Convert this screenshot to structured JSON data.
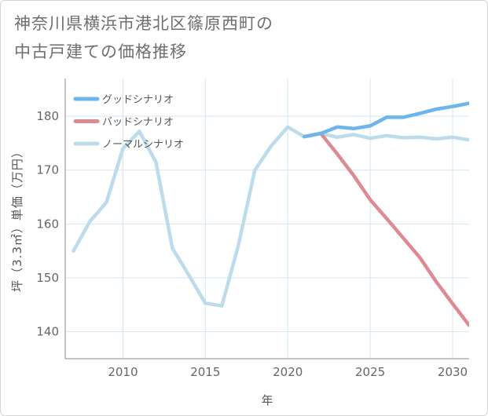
{
  "title": "神奈川県横浜市港北区篠原西町の\n中古戸建ての価格推移",
  "chart_data": {
    "type": "line",
    "title": "神奈川県横浜市港北区篠原西町の中古戸建ての価格推移",
    "xlabel": "年",
    "ylabel": "坪（3.3㎡）単価（万円）",
    "xlim": [
      2006.5,
      2031
    ],
    "ylim": [
      135,
      187
    ],
    "xticks": [
      2010,
      2015,
      2020,
      2025,
      2030
    ],
    "yticks": [
      140,
      150,
      160,
      170,
      180
    ],
    "grid": true,
    "legend_position": "top-left",
    "series": [
      {
        "name": "グッドシナリオ",
        "color": "#6db6ec",
        "x": [
          2021,
          2022,
          2023,
          2024,
          2025,
          2026,
          2027,
          2028,
          2029,
          2030,
          2031
        ],
        "y": [
          176.2,
          176.8,
          178.0,
          177.7,
          178.2,
          179.8,
          179.8,
          180.5,
          181.3,
          181.8,
          182.4
        ]
      },
      {
        "name": "バッドシナリオ",
        "color": "#de8a92",
        "x": [
          2021,
          2022,
          2023,
          2024,
          2025,
          2026,
          2027,
          2028,
          2029,
          2030,
          2031
        ],
        "y": [
          176.2,
          176.8,
          173.0,
          169.0,
          164.5,
          161.0,
          157.4,
          153.8,
          149.3,
          145.2,
          141.2
        ]
      },
      {
        "name": "ノーマルシナリオ",
        "color": "#bcdcec",
        "x": [
          2007,
          2008,
          2009,
          2010,
          2011,
          2012,
          2013,
          2014,
          2015,
          2016,
          2017,
          2018,
          2019,
          2020,
          2021,
          2022,
          2023,
          2024,
          2025,
          2026,
          2027,
          2028,
          2029,
          2030,
          2031
        ],
        "y": [
          155.0,
          160.5,
          164.0,
          174.0,
          177.2,
          171.5,
          155.5,
          150.5,
          145.3,
          144.8,
          156.0,
          170.0,
          174.5,
          178.0,
          176.2,
          176.8,
          176.1,
          176.6,
          175.9,
          176.4,
          176.0,
          176.1,
          175.8,
          176.1,
          175.6
        ]
      }
    ]
  }
}
